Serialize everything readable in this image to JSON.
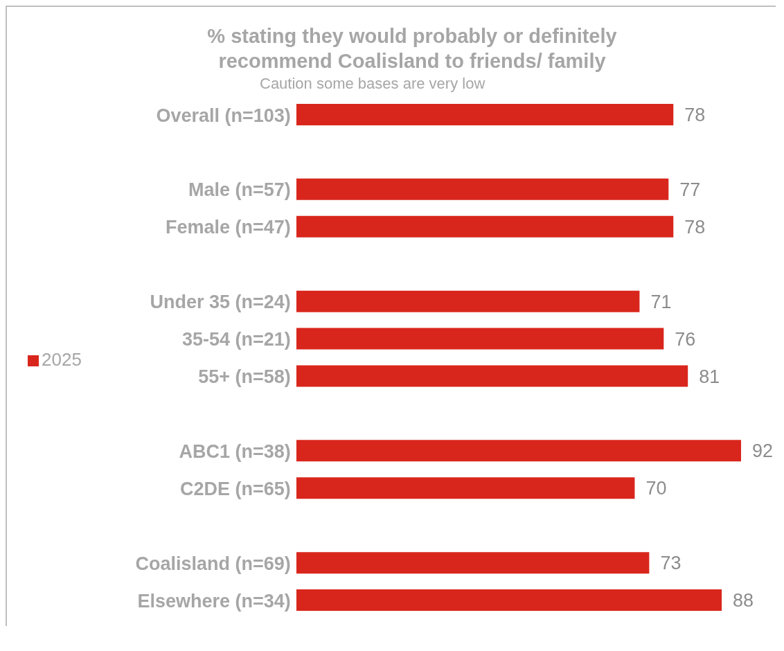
{
  "chart_data": {
    "type": "bar",
    "orientation": "horizontal",
    "title": "% stating they would probably or definitely recommend Coalisland to friends/ family",
    "subtitle": "Caution some bases are very low",
    "categories": [
      "Overall (n=103)",
      null,
      "Male (n=57)",
      "Female (n=47)",
      null,
      "Under 35 (n=24)",
      "35-54 (n=21)",
      "55+ (n=58)",
      null,
      "ABC1 (n=38)",
      "C2DE (n=65)",
      null,
      "Coalisland (n=69)",
      "Elsewhere (n=34)"
    ],
    "series": [
      {
        "name": "2025",
        "color": "#d9261c",
        "values": [
          78,
          null,
          77,
          78,
          null,
          71,
          76,
          81,
          null,
          92,
          70,
          null,
          73,
          88
        ]
      }
    ],
    "data_labels": true,
    "legend": "left",
    "grid": false
  }
}
